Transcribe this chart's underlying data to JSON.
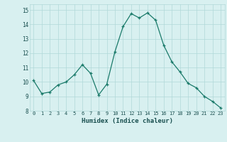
{
  "x": [
    0,
    1,
    2,
    3,
    4,
    5,
    6,
    7,
    8,
    9,
    10,
    11,
    12,
    13,
    14,
    15,
    16,
    17,
    18,
    19,
    20,
    21,
    22,
    23
  ],
  "y": [
    10.1,
    9.2,
    9.3,
    9.8,
    10.0,
    10.5,
    11.2,
    10.6,
    9.1,
    9.85,
    12.1,
    13.85,
    14.75,
    14.45,
    14.8,
    14.3,
    12.55,
    11.4,
    10.7,
    9.9,
    9.6,
    9.0,
    8.65,
    8.2
  ],
  "xlabel": "Humidex (Indice chaleur)",
  "xlim": [
    -0.5,
    23.5
  ],
  "ylim": [
    8,
    15.4
  ],
  "yticks": [
    8,
    9,
    10,
    11,
    12,
    13,
    14,
    15
  ],
  "xticks": [
    0,
    1,
    2,
    3,
    4,
    5,
    6,
    7,
    8,
    9,
    10,
    11,
    12,
    13,
    14,
    15,
    16,
    17,
    18,
    19,
    20,
    21,
    22,
    23
  ],
  "line_color": "#1a7a6a",
  "marker_color": "#1a7a6a",
  "bg_color": "#d8f0f0",
  "grid_color": "#b0d8d8",
  "label_color": "#1a5050"
}
